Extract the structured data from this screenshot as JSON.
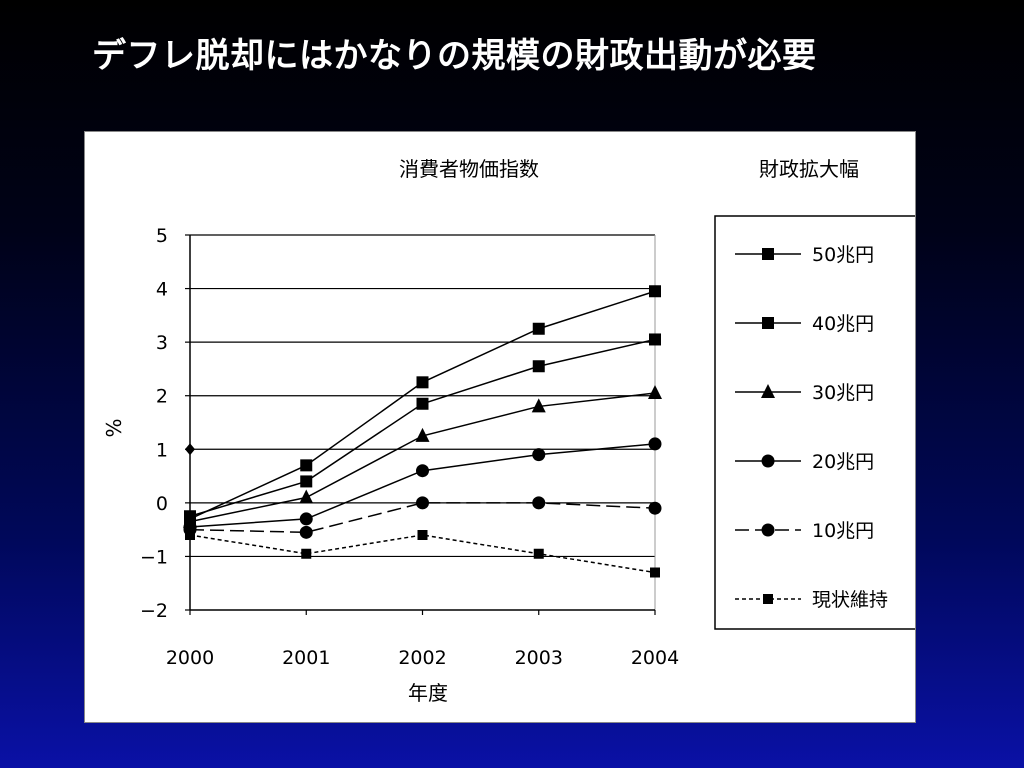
{
  "slide": {
    "title": "デフレ脱却にはかなりの規模の財政出動が必要"
  },
  "chart_data": {
    "type": "line",
    "title": "消費者物価指数",
    "xlabel": "年度",
    "ylabel": "%",
    "x": [
      2000,
      2001,
      2002,
      2003,
      2004
    ],
    "ylim": [
      -2,
      5
    ],
    "yticks": [
      "5",
      "4",
      "3",
      "2",
      "1",
      "0",
      "−1",
      "−2"
    ],
    "xticks": [
      "2000",
      "2001",
      "2002",
      "2003",
      "2004"
    ],
    "grid": true,
    "legend": {
      "title": "財政拡大幅",
      "placement": "right"
    },
    "extra_point": {
      "x": 2000,
      "y": 1.0,
      "marker": "diamond"
    },
    "series": [
      {
        "name": "50兆円",
        "values": [
          -0.3,
          0.7,
          2.25,
          3.25,
          3.95
        ],
        "marker": "square",
        "dash": "solid"
      },
      {
        "name": "40兆円",
        "values": [
          -0.25,
          0.4,
          1.85,
          2.55,
          3.05
        ],
        "marker": "square",
        "dash": "solid"
      },
      {
        "name": "30兆円",
        "values": [
          -0.35,
          0.1,
          1.25,
          1.8,
          2.05
        ],
        "marker": "triangle",
        "dash": "solid"
      },
      {
        "name": "20兆円",
        "values": [
          -0.45,
          -0.3,
          0.6,
          0.9,
          1.1
        ],
        "marker": "circle",
        "dash": "solid"
      },
      {
        "name": "10兆円",
        "values": [
          -0.5,
          -0.55,
          0.0,
          0.0,
          -0.1
        ],
        "marker": "circle",
        "dash": "longdash"
      },
      {
        "name": "現状維持",
        "values": [
          -0.6,
          -0.95,
          -0.6,
          -0.95,
          -1.3
        ],
        "marker": "square-small",
        "dash": "shortdash"
      }
    ]
  }
}
